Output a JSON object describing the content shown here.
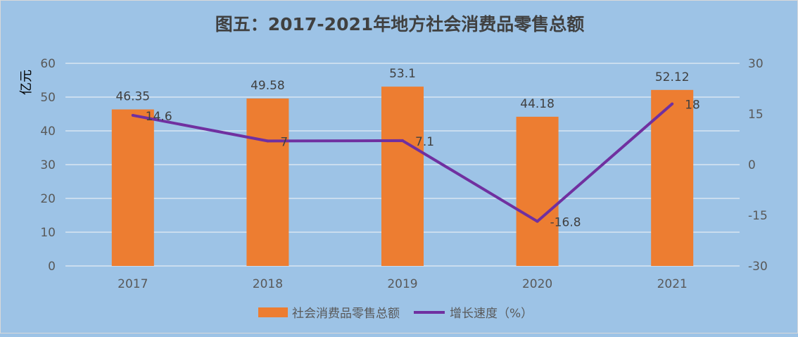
{
  "chart_data": {
    "type": "bar+line",
    "title": "图五：2017-2021年地方社会消费品零售总额",
    "ylabel": "亿元",
    "categories": [
      "2017",
      "2018",
      "2019",
      "2020",
      "2021"
    ],
    "series": [
      {
        "name": "社会消费品零售总额",
        "type": "bar",
        "axis": "left",
        "values": [
          46.35,
          49.58,
          53.1,
          44.18,
          52.12
        ],
        "labels": [
          "46.35",
          "49.58",
          "53.1",
          "44.18",
          "52.12"
        ],
        "color": "#ed7d31"
      },
      {
        "name": "增长速度（%）",
        "type": "line",
        "axis": "right",
        "values": [
          14.6,
          7,
          7.1,
          -16.8,
          18
        ],
        "labels": [
          "14.6",
          "7",
          "7.1",
          "-16.8",
          "18"
        ],
        "color": "#7030a0"
      }
    ],
    "ylim": [
      0,
      60
    ],
    "yticks": [
      "0",
      "10",
      "20",
      "30",
      "40",
      "50",
      "60"
    ],
    "y2lim": [
      -30,
      30
    ],
    "y2ticks": [
      "-30",
      "-15",
      "0",
      "15",
      "30"
    ],
    "grid": true,
    "legend": "bottom"
  }
}
